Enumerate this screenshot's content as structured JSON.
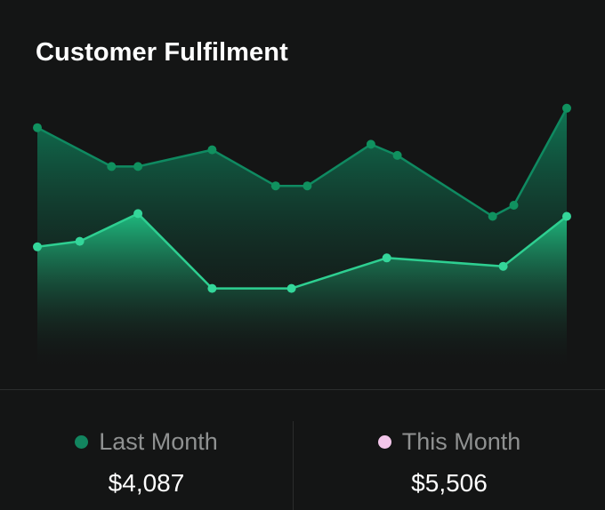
{
  "title": "Customer Fulfilment",
  "colors": {
    "last_month": "#12855f",
    "this_month": "#f3c6ea",
    "this_month_line": "#2ecf91",
    "background": "#141515"
  },
  "chart_data": {
    "type": "area",
    "title": "Customer Fulfilment",
    "xlabel": "",
    "ylabel": "",
    "grid": false,
    "legend": "bottom",
    "ylim": [
      0,
      100
    ],
    "series": [
      {
        "name": "Last Month",
        "x": [
          0,
          14,
          19,
          33,
          45,
          51,
          63,
          68,
          86,
          90,
          100
        ],
        "values": [
          86,
          72,
          72,
          78,
          65,
          65,
          80,
          76,
          54,
          58,
          93
        ]
      },
      {
        "name": "This Month",
        "x": [
          0,
          8,
          19,
          33,
          48,
          66,
          88,
          100
        ],
        "values": [
          43,
          45,
          55,
          28,
          28,
          39,
          36,
          54
        ]
      }
    ]
  },
  "legend": {
    "last_month": {
      "label": "Last Month",
      "value": "$4,087"
    },
    "this_month": {
      "label": "This Month",
      "value": "$5,506"
    }
  }
}
